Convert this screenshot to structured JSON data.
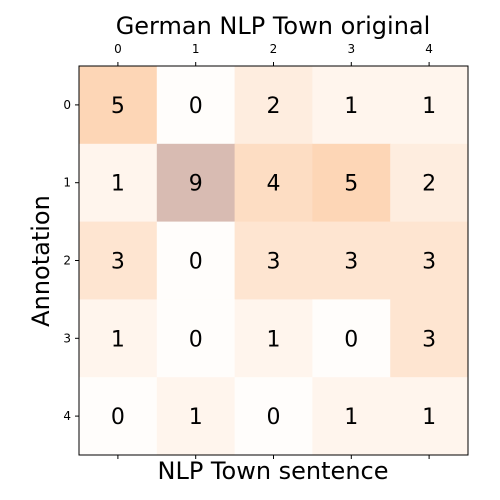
{
  "chart_data": {
    "type": "heatmap",
    "title": "German NLP Town original",
    "xlabel": "NLP Town sentence",
    "ylabel": "Annotation",
    "x_categories": [
      "0",
      "1",
      "2",
      "3",
      "4"
    ],
    "y_categories": [
      "0",
      "1",
      "2",
      "3",
      "4"
    ],
    "x_tick_position": "top",
    "values": [
      [
        5,
        0,
        2,
        1,
        1
      ],
      [
        1,
        9,
        4,
        5,
        2
      ],
      [
        3,
        0,
        3,
        3,
        3
      ],
      [
        1,
        0,
        1,
        0,
        3
      ],
      [
        0,
        1,
        0,
        1,
        1
      ]
    ],
    "colors": {
      "low": "#fffdfb",
      "mid": "#fdd6b6",
      "high": "#d8bbb2"
    }
  }
}
